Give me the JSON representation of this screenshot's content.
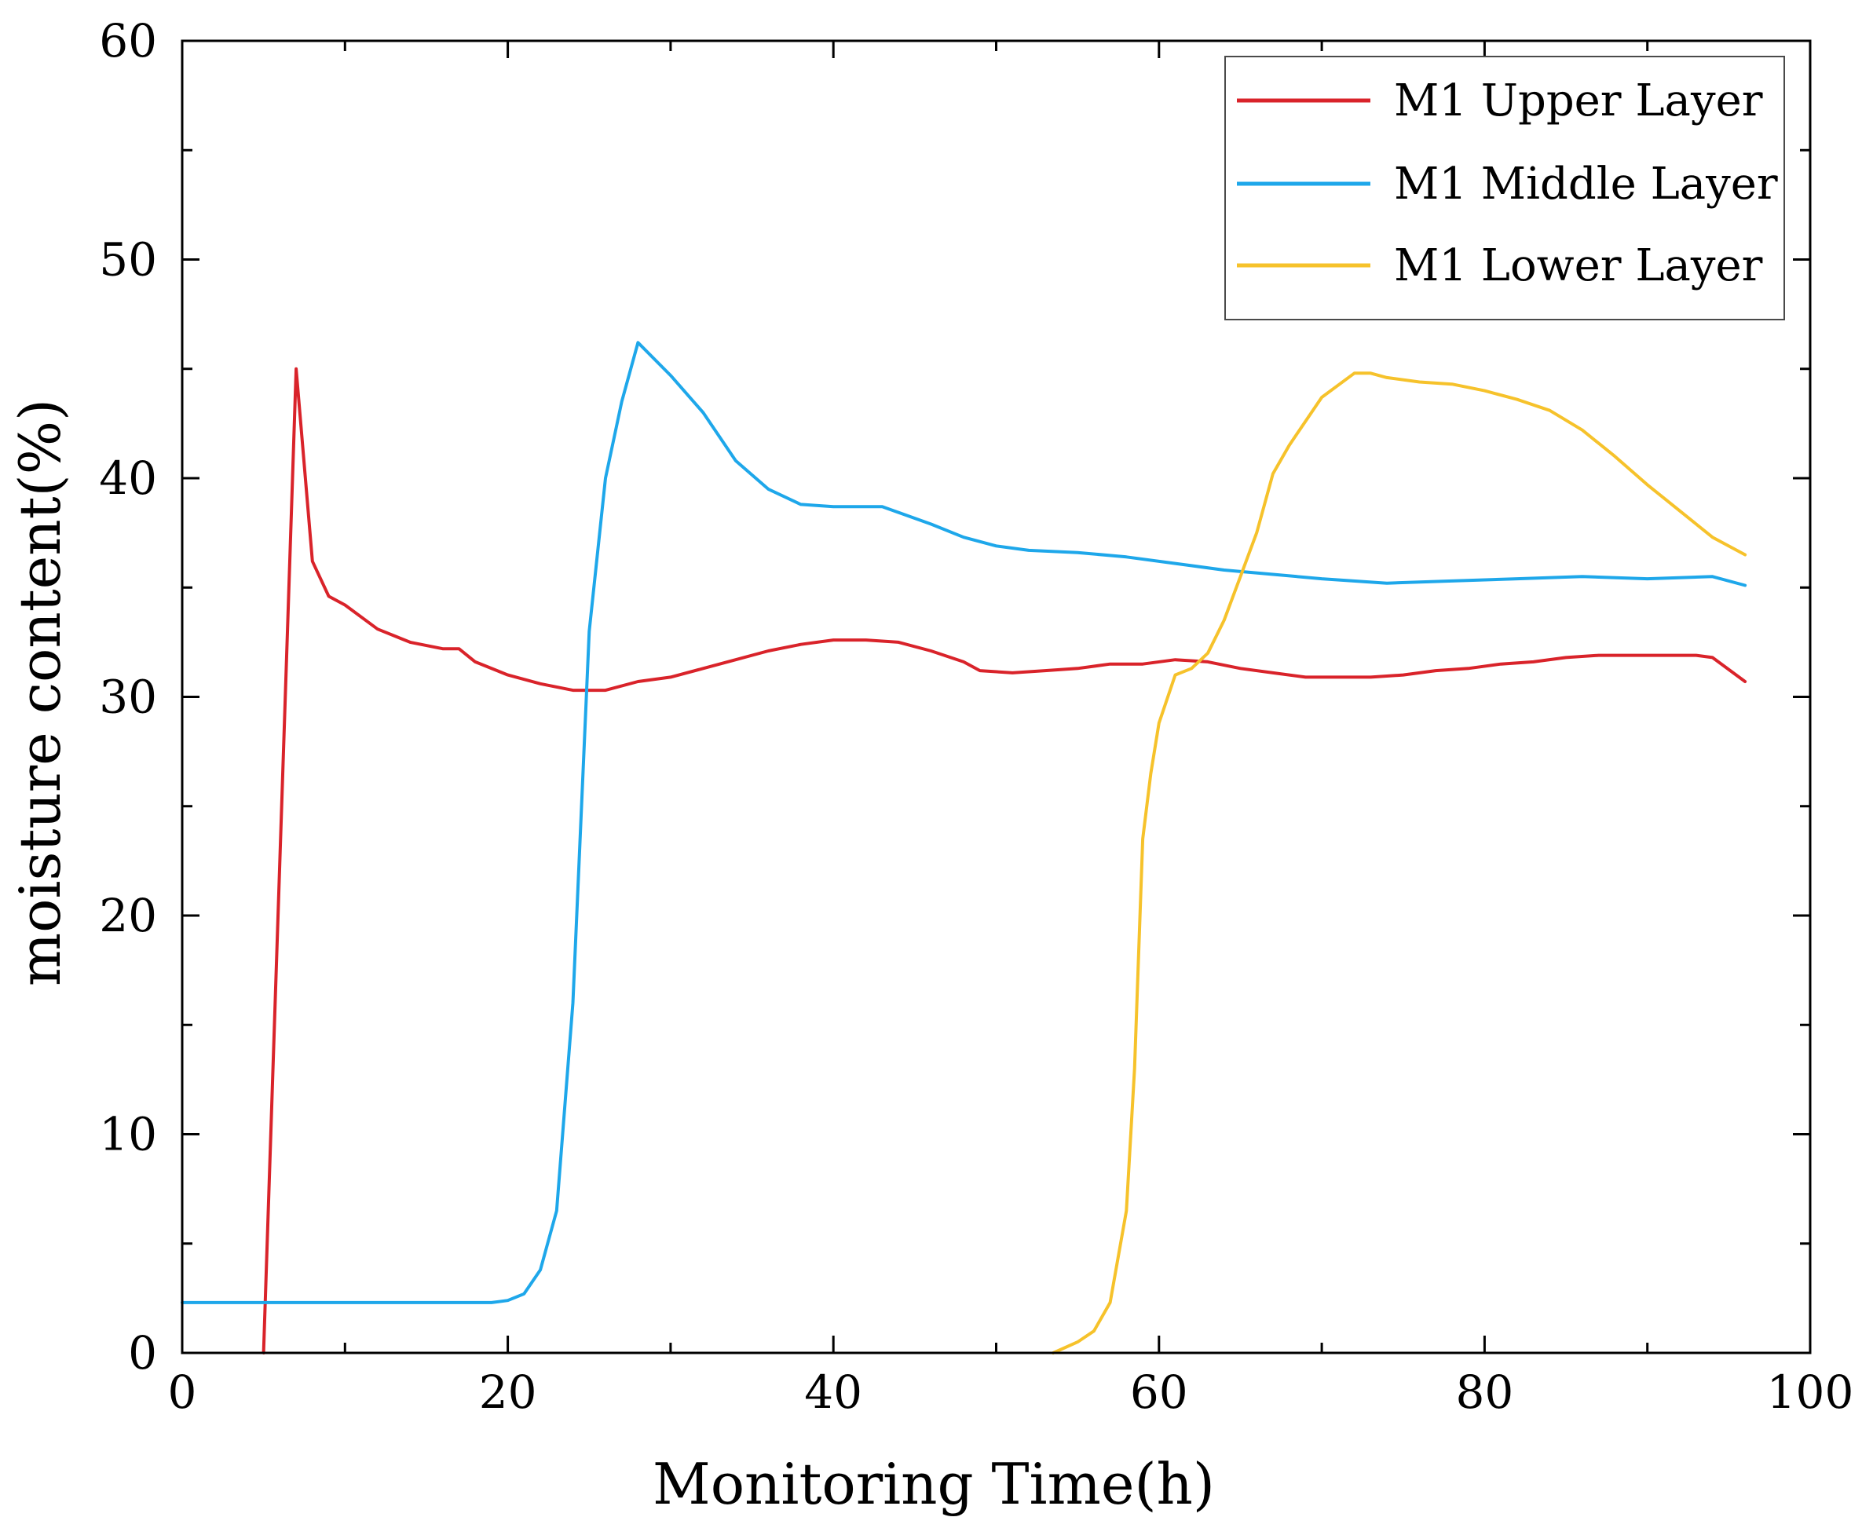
{
  "chart_data": {
    "type": "line",
    "title": "",
    "xlabel": "Monitoring Time(h)",
    "ylabel": "moisture content(%)",
    "xlim": [
      0,
      100
    ],
    "ylim": [
      0,
      60
    ],
    "xticks": [
      0,
      20,
      40,
      60,
      80,
      100
    ],
    "yticks": [
      0,
      10,
      20,
      30,
      40,
      50,
      60
    ],
    "xtick_labels": [
      "0",
      "20",
      "40",
      "60",
      "80",
      "100"
    ],
    "ytick_labels": [
      "0",
      "10",
      "20",
      "30",
      "40",
      "50",
      "60"
    ],
    "grid": false,
    "legend_position": "top-right",
    "series": [
      {
        "name": "M1 Upper Layer",
        "color": "#d9232a",
        "x": [
          5,
          7,
          8,
          9,
          10,
          12,
          14,
          16,
          17,
          18,
          20,
          22,
          24,
          26,
          28,
          30,
          32,
          34,
          36,
          38,
          40,
          42,
          44,
          46,
          48,
          49,
          51,
          53,
          55,
          57,
          59,
          61,
          63,
          65,
          67,
          69,
          71,
          73,
          75,
          77,
          79,
          81,
          83,
          85,
          87,
          89,
          91,
          93,
          94,
          96
        ],
        "y": [
          0,
          45,
          36.2,
          34.6,
          34.2,
          33.1,
          32.5,
          32.2,
          32.2,
          31.6,
          31,
          30.6,
          30.3,
          30.3,
          30.7,
          30.9,
          31.3,
          31.7,
          32.1,
          32.4,
          32.6,
          32.6,
          32.5,
          32.1,
          31.6,
          31.2,
          31.1,
          31.2,
          31.3,
          31.5,
          31.5,
          31.7,
          31.6,
          31.3,
          31.1,
          30.9,
          30.9,
          30.9,
          31,
          31.2,
          31.3,
          31.5,
          31.6,
          31.8,
          31.9,
          31.9,
          31.9,
          31.9,
          31.8,
          30.7
        ]
      },
      {
        "name": "M1 Middle Layer",
        "color": "#1ea7ea",
        "x": [
          0,
          5,
          10,
          15,
          19,
          20,
          21,
          22,
          23,
          24,
          25,
          26,
          27,
          28,
          30,
          32,
          34,
          36,
          38,
          40,
          43,
          46,
          48,
          50,
          52,
          55,
          58,
          61,
          64,
          67,
          70,
          74,
          78,
          82,
          86,
          90,
          94,
          96
        ],
        "y": [
          2.3,
          2.3,
          2.3,
          2.3,
          2.3,
          2.4,
          2.7,
          3.8,
          6.5,
          16,
          33,
          40,
          43.5,
          46.2,
          44.7,
          43,
          40.8,
          39.5,
          38.8,
          38.7,
          38.7,
          37.9,
          37.3,
          36.9,
          36.7,
          36.6,
          36.4,
          36.1,
          35.8,
          35.6,
          35.4,
          35.2,
          35.3,
          35.4,
          35.5,
          35.4,
          35.5,
          35.1
        ]
      },
      {
        "name": "M1 Lower Layer",
        "color": "#f6c22b",
        "x": [
          53.5,
          55,
          56,
          57,
          58,
          58.5,
          59,
          59.5,
          60,
          61,
          62,
          63,
          64,
          65,
          66,
          67,
          68,
          70,
          72,
          73,
          74,
          76,
          78,
          80,
          82,
          84,
          86,
          88,
          90,
          92,
          94,
          96
        ],
        "y": [
          0,
          0.5,
          1,
          2.3,
          6.5,
          13,
          23.5,
          26.5,
          28.8,
          31,
          31.3,
          32,
          33.5,
          35.5,
          37.5,
          40.2,
          41.5,
          43.7,
          44.8,
          44.8,
          44.6,
          44.4,
          44.3,
          44,
          43.6,
          43.1,
          42.2,
          41,
          39.7,
          38.5,
          37.3,
          36.5
        ]
      }
    ]
  }
}
